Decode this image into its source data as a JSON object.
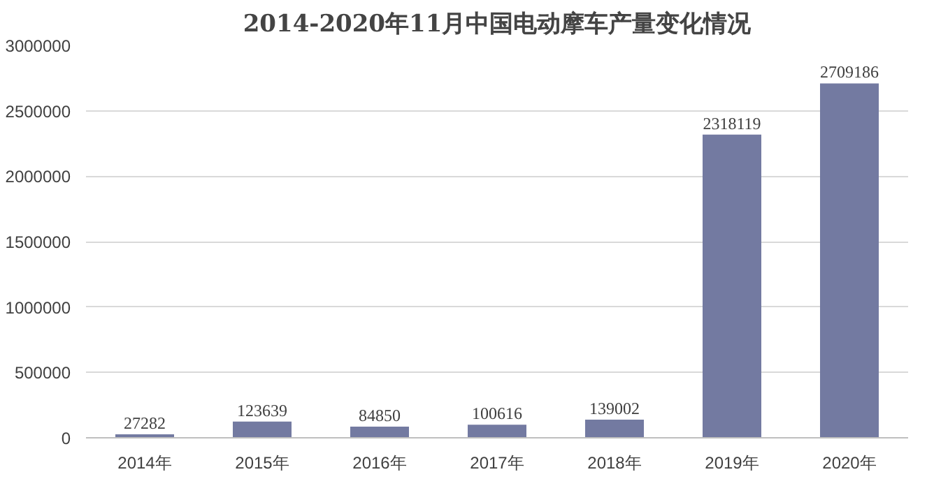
{
  "chart_data": {
    "type": "bar",
    "title": "2014-2020年11月中国电动摩车产量变化情况",
    "categories": [
      "2014年",
      "2015年",
      "2016年",
      "2017年",
      "2018年",
      "2019年",
      "2020年"
    ],
    "values": [
      27282,
      123639,
      84850,
      100616,
      139002,
      2318119,
      2709186
    ],
    "color": "#737aa1",
    "ylim": [
      0,
      3000000
    ],
    "yticks": [
      0,
      500000,
      1000000,
      1500000,
      2000000,
      2500000,
      3000000
    ],
    "grid": "y",
    "data_labels": true
  }
}
